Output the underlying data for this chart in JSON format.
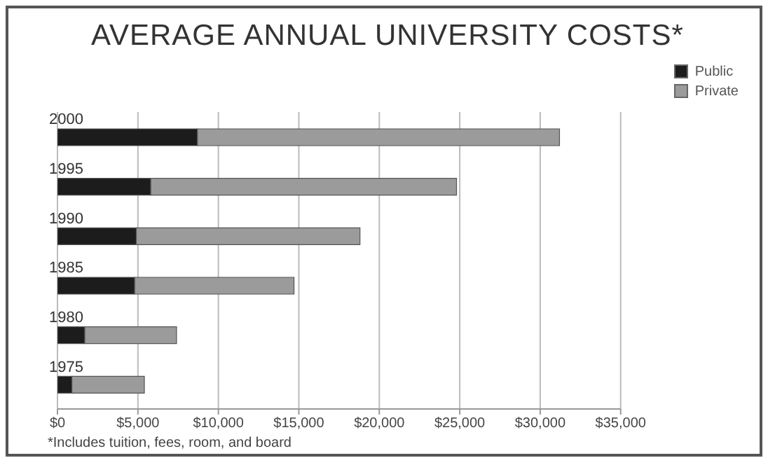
{
  "chart_data": {
    "type": "bar",
    "orientation": "horizontal",
    "stacked": true,
    "title": "AVERAGE ANNUAL UNIVERSITY COSTS*",
    "categories": [
      "2000",
      "1995",
      "1990",
      "1985",
      "1980",
      "1975"
    ],
    "series": [
      {
        "name": "Public",
        "color": "#1c1c1c",
        "values": [
          8700,
          5800,
          4900,
          4800,
          1700,
          900
        ]
      },
      {
        "name": "Private",
        "color": "#9b9b9b",
        "values": [
          22500,
          19000,
          13900,
          9900,
          5700,
          4500
        ]
      }
    ],
    "xlim": [
      0,
      35000
    ],
    "xticks": [
      {
        "value": 0,
        "label": "$0"
      },
      {
        "value": 5000,
        "label": "$5,000"
      },
      {
        "value": 10000,
        "label": "$10,000"
      },
      {
        "value": 15000,
        "label": "$15,000"
      },
      {
        "value": 20000,
        "label": "$20,000"
      },
      {
        "value": 25000,
        "label": "$25,000"
      },
      {
        "value": 30000,
        "label": "$30,000"
      },
      {
        "value": 35000,
        "label": "$35,000"
      }
    ],
    "grid": "x",
    "legend": "top right",
    "annotations": [
      "*Includes tuition, fees, room, and board"
    ]
  }
}
